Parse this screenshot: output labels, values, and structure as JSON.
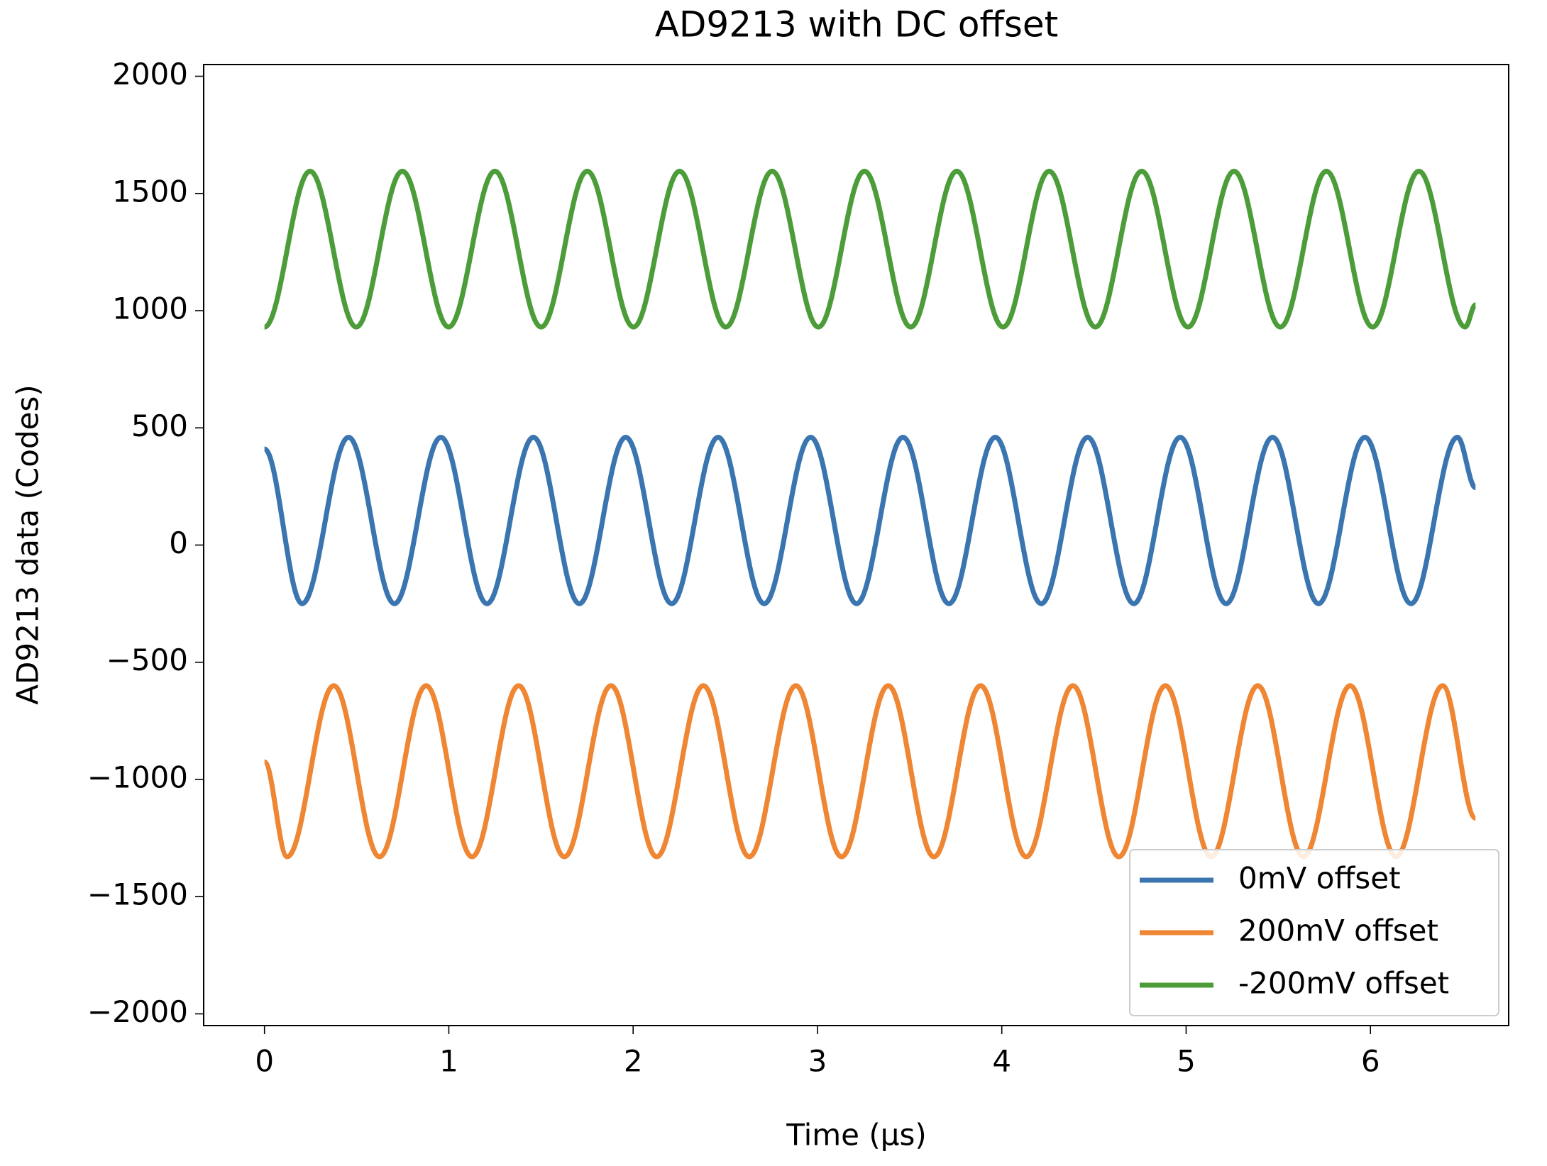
{
  "chart_data": {
    "type": "line",
    "title": "AD9213 with DC offset",
    "x_label": "Time (μs)",
    "y_label": "AD9213 data (Codes)",
    "xlim": [
      -0.33,
      6.75
    ],
    "ylim": [
      -2050,
      2050
    ],
    "xticks": [
      0,
      1,
      2,
      3,
      4,
      5,
      6
    ],
    "yticks": [
      {
        "value": -2000,
        "label": "−2000"
      },
      {
        "value": -1500,
        "label": "−1500"
      },
      {
        "value": -1000,
        "label": "−1000"
      },
      {
        "value": -500,
        "label": "−500"
      },
      0,
      500,
      1000,
      1500,
      2000
    ],
    "legend": "lower right",
    "grid": false,
    "series": [
      {
        "name": "0mV offset",
        "color": "#3a75b0",
        "x": [
          0,
          0.204,
          0.456,
          0.705,
          0.957,
          1.207,
          1.459,
          1.708,
          1.96,
          2.209,
          2.461,
          2.711,
          2.963,
          3.212,
          3.464,
          3.713,
          3.965,
          4.214,
          4.466,
          4.716,
          4.968,
          5.217,
          5.469,
          5.718,
          5.97,
          6.22,
          6.472,
          6.57
        ],
        "values": [
          410,
          -250,
          460,
          -250,
          460,
          -250,
          460,
          -250,
          460,
          -250,
          460,
          -250,
          460,
          -250,
          460,
          -250,
          460,
          -250,
          460,
          -250,
          460,
          -250,
          460,
          -250,
          460,
          -250,
          460,
          245
        ]
      },
      {
        "name": "200mV offset",
        "color": "#ef8633",
        "x": [
          0,
          0.123,
          0.376,
          0.624,
          0.877,
          1.126,
          1.379,
          1.627,
          1.88,
          2.128,
          2.381,
          2.63,
          2.883,
          3.131,
          3.384,
          3.632,
          3.885,
          4.133,
          4.386,
          4.635,
          4.888,
          5.136,
          5.389,
          5.637,
          5.89,
          6.139,
          6.392,
          6.57
        ],
        "values": [
          -925,
          -1330,
          -600,
          -1330,
          -600,
          -1330,
          -600,
          -1330,
          -600,
          -1330,
          -600,
          -1330,
          -600,
          -1330,
          -600,
          -1330,
          -600,
          -1330,
          -600,
          -1330,
          -600,
          -1330,
          -600,
          -1330,
          -600,
          -1330,
          -600,
          -1165
        ]
      },
      {
        "name": "-200mV offset",
        "color": "#4c9d3a",
        "x": [
          0,
          0.247,
          0.498,
          0.748,
          0.999,
          1.25,
          1.501,
          1.751,
          2.002,
          2.252,
          2.503,
          2.754,
          3.005,
          3.255,
          3.506,
          3.756,
          4.007,
          4.257,
          4.508,
          4.759,
          5.01,
          5.26,
          5.511,
          5.761,
          6.012,
          6.263,
          6.514,
          6.57
        ],
        "values": [
          930,
          1595,
          930,
          1595,
          930,
          1595,
          930,
          1595,
          930,
          1595,
          930,
          1595,
          930,
          1595,
          930,
          1595,
          930,
          1595,
          930,
          1595,
          930,
          1595,
          930,
          1595,
          930,
          1595,
          930,
          1025
        ]
      }
    ]
  }
}
